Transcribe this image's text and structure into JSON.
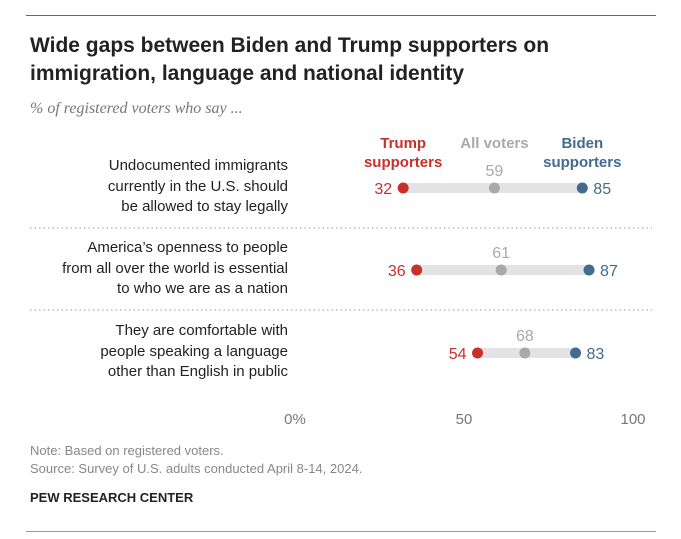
{
  "chart_data": {
    "type": "dot",
    "title": "Wide gaps between Biden and Trump supporters on immigration, language and national identity",
    "subtitle": "% of registered voters who say ...",
    "categories": [
      [
        "Undocumented immigrants",
        "currently in the U.S. should",
        "be allowed to stay legally"
      ],
      [
        "America’s openness to people",
        "from all over the world is essential",
        "to who we are as a nation"
      ],
      [
        "They are comfortable with",
        "people speaking a language",
        "other than English in public"
      ]
    ],
    "series": [
      {
        "name": "Trump supporters",
        "name_lines": [
          "Trump",
          "supporters"
        ],
        "color": "#c8302a",
        "values": [
          32,
          36,
          54
        ]
      },
      {
        "name": "All voters",
        "name_lines": [
          "All voters"
        ],
        "color": "#a9a9a9",
        "values": [
          59,
          61,
          68
        ]
      },
      {
        "name": "Biden supporters",
        "name_lines": [
          "Biden",
          "supporters"
        ],
        "color": "#436b8f",
        "values": [
          85,
          87,
          83
        ]
      }
    ],
    "xlim": [
      0,
      100
    ],
    "xticks": [
      {
        "value": 0,
        "label": "0%"
      },
      {
        "value": 50,
        "label": "50"
      },
      {
        "value": 100,
        "label": "100"
      }
    ],
    "grid": false
  },
  "notes": {
    "note": "Note: Based on registered voters.",
    "source": "Source: Survey of U.S. adults conducted April 8-14, 2024."
  },
  "brand": "PEW RESEARCH CENTER"
}
